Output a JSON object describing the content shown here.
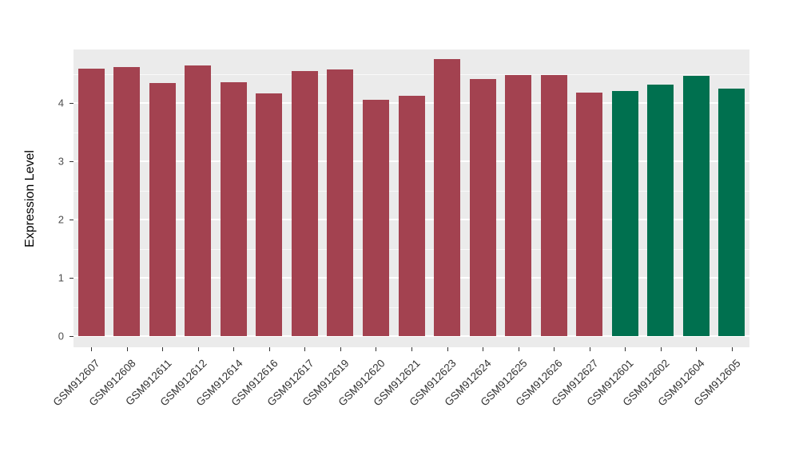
{
  "chart_data": {
    "type": "bar",
    "title": "",
    "xlabel": "",
    "ylabel": "Expression Level",
    "ylim": [
      0,
      4.9
    ],
    "yticks": [
      0,
      1,
      2,
      3,
      4
    ],
    "yticks_minor": [
      0.5,
      1.5,
      2.5,
      3.5,
      4.5
    ],
    "grid": true,
    "legend_position": "none",
    "panel_bg": "#EBEBEB",
    "gridline_color": "#FFFFFF",
    "categories": [
      "GSM912607",
      "GSM912608",
      "GSM912611",
      "GSM912612",
      "GSM912614",
      "GSM912616",
      "GSM912617",
      "GSM912619",
      "GSM912620",
      "GSM912621",
      "GSM912623",
      "GSM912624",
      "GSM912625",
      "GSM912626",
      "GSM912627",
      "GSM912601",
      "GSM912602",
      "GSM912604",
      "GSM912605"
    ],
    "values": [
      4.59,
      4.61,
      4.34,
      4.64,
      4.36,
      4.16,
      4.55,
      4.58,
      4.06,
      4.13,
      4.76,
      4.41,
      4.48,
      4.48,
      4.18,
      4.21,
      4.31,
      4.47,
      4.25
    ],
    "groups": [
      "red",
      "red",
      "red",
      "red",
      "red",
      "red",
      "red",
      "red",
      "red",
      "red",
      "red",
      "red",
      "red",
      "red",
      "red",
      "green",
      "green",
      "green",
      "green"
    ],
    "palette": {
      "red": "#A34250",
      "green": "#00704F"
    }
  }
}
